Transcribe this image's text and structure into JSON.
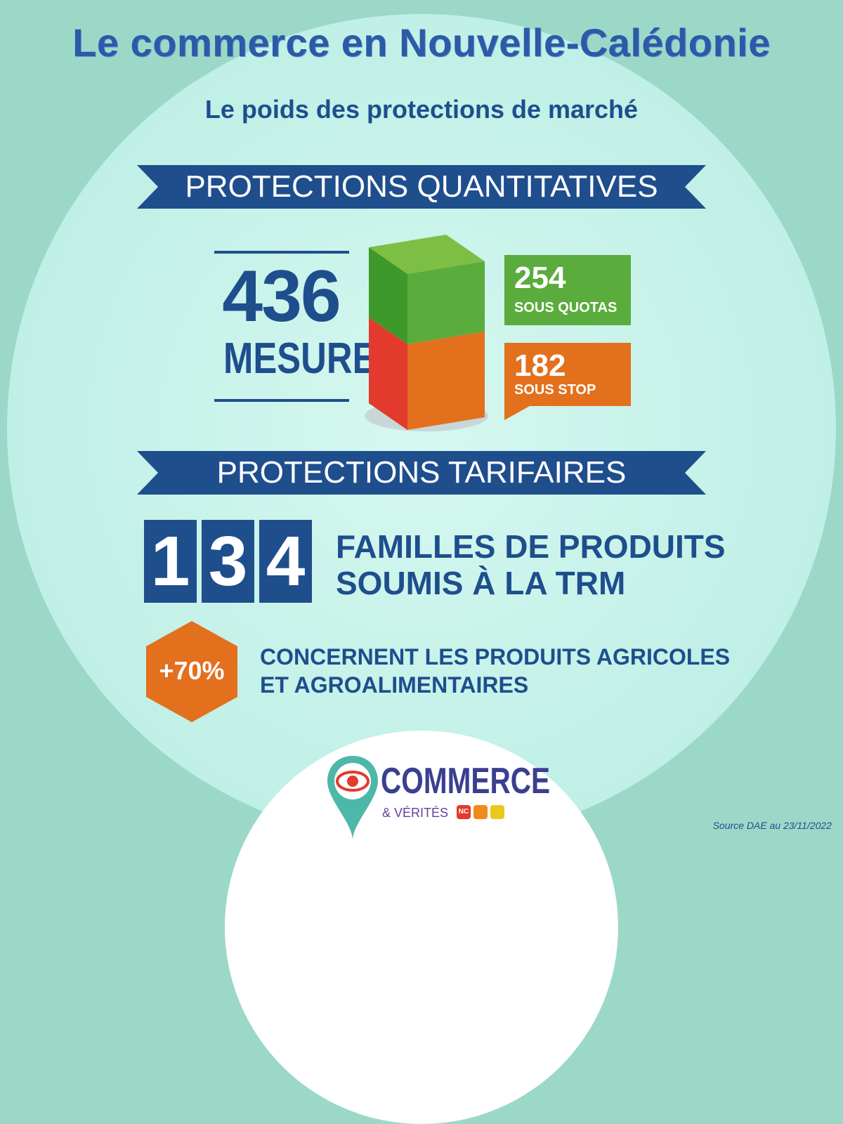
{
  "header": {
    "title": "Le commerce en Nouvelle-Calédonie",
    "subtitle": "Le poids des protections de marché"
  },
  "quantitatives": {
    "ribbon_label": "PROTECTIONS QUANTITATIVES",
    "total_value": "436",
    "total_label": "MESURES",
    "quotas_value": "254",
    "quotas_label": "SOUS QUOTAS",
    "stop_value": "182",
    "stop_label": "SOUS STOP"
  },
  "tarifaires": {
    "ribbon_label": "PROTECTIONS TARIFAIRES",
    "digits": [
      "1",
      "3",
      "4"
    ],
    "familles_line1": "FAMILLES DE PRODUITS",
    "familles_line2": "SOUMIS À LA TRM",
    "percent": "+70%",
    "agri_line1": "CONCERNENT LES PRODUITS AGRICOLES",
    "agri_line2": "ET AGROALIMENTAIRES"
  },
  "logo": {
    "word": "COMMERCE",
    "sub": "& VÉRITÉS",
    "badge": "NC"
  },
  "footer": {
    "source": "Source DAE au 23/11/2022"
  },
  "colors": {
    "navy": "#1f4e8d",
    "green": "#5aac3c",
    "orange": "#e3701d",
    "red": "#e23a2c",
    "background": "#9bd8c8"
  },
  "icons": [
    "eye-pin-icon",
    "cube-bar-icon",
    "hexagon-badge-icon"
  ]
}
